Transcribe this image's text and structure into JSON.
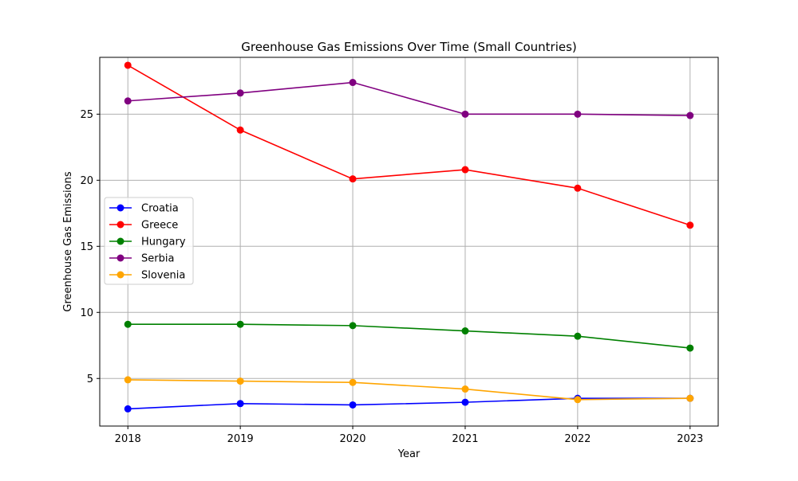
{
  "chart_data": {
    "type": "line",
    "title": "Greenhouse Gas Emissions Over Time (Small Countries)",
    "xlabel": "Year",
    "ylabel": "Greenhouse Gas Emissions",
    "x": [
      2018,
      2019,
      2020,
      2021,
      2022,
      2023
    ],
    "x_ticks": [
      "2018",
      "2019",
      "2020",
      "2021",
      "2022",
      "2023"
    ],
    "xlim": [
      2017.75,
      2023.25
    ],
    "ylim": [
      1.4,
      29.3
    ],
    "y_ticks": [
      5,
      10,
      15,
      20,
      25
    ],
    "grid": true,
    "legend_position": "center-left",
    "series": [
      {
        "name": "Croatia",
        "color": "#0000ff",
        "values": [
          2.7,
          3.1,
          3.0,
          3.2,
          3.5,
          3.5
        ]
      },
      {
        "name": "Greece",
        "color": "#ff0000",
        "values": [
          28.7,
          23.8,
          20.1,
          20.8,
          19.4,
          16.6
        ]
      },
      {
        "name": "Hungary",
        "color": "#008000",
        "values": [
          9.1,
          9.1,
          9.0,
          8.6,
          8.2,
          7.3
        ]
      },
      {
        "name": "Serbia",
        "color": "#800080",
        "values": [
          26.0,
          26.6,
          27.4,
          25.0,
          25.0,
          24.9
        ]
      },
      {
        "name": "Slovenia",
        "color": "#ffa500",
        "values": [
          4.9,
          4.8,
          4.7,
          4.2,
          3.4,
          3.5
        ]
      }
    ]
  }
}
